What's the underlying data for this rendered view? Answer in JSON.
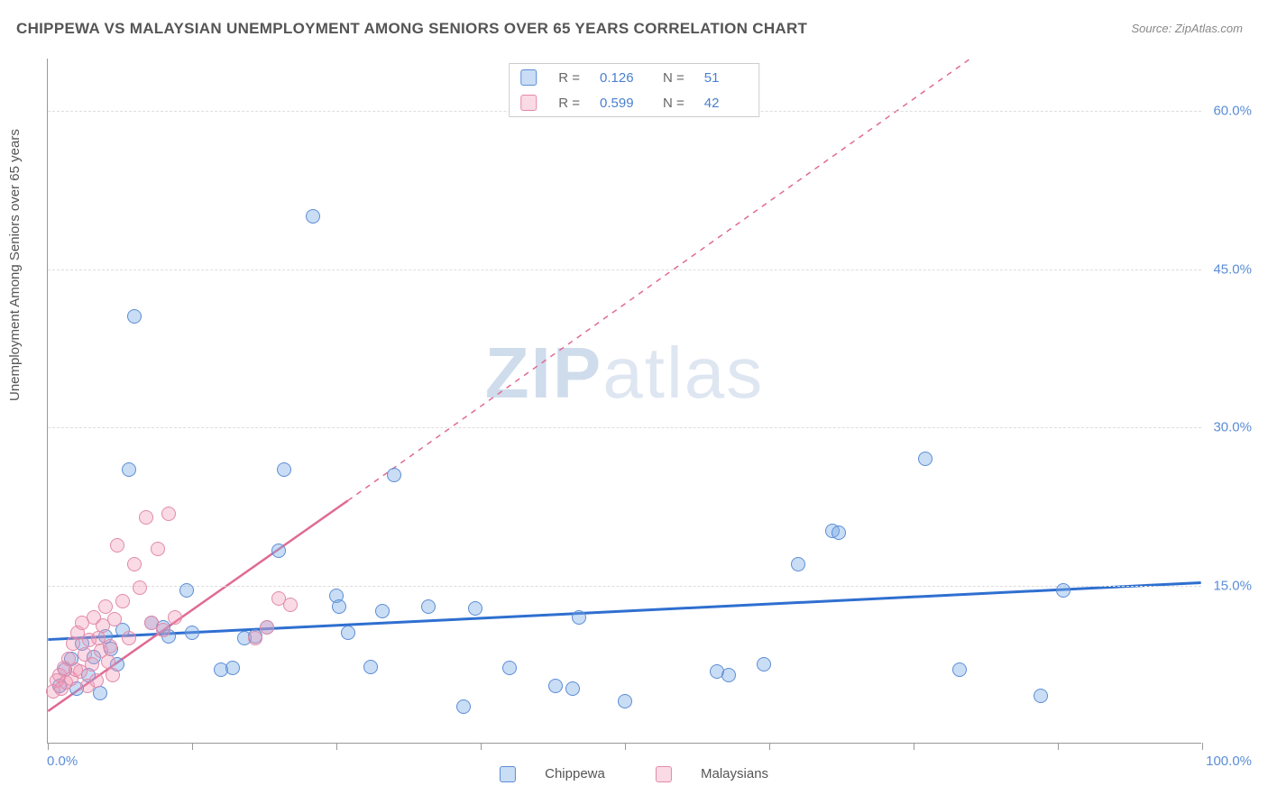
{
  "title": "CHIPPEWA VS MALAYSIAN UNEMPLOYMENT AMONG SENIORS OVER 65 YEARS CORRELATION CHART",
  "source_label": "Source: ",
  "source_value": "ZipAtlas.com",
  "y_axis_label": "Unemployment Among Seniors over 65 years",
  "watermark_a": "ZIP",
  "watermark_b": "atlas",
  "chart": {
    "type": "scatter",
    "xlim": [
      0,
      100
    ],
    "ylim": [
      0,
      65
    ],
    "x_ticks_pct": [
      0,
      12.5,
      25,
      37.5,
      50,
      62.5,
      75,
      87.5,
      100
    ],
    "x_tick_labels": {
      "0": "0.0%",
      "100": "100.0%"
    },
    "y_gridlines": [
      15,
      30,
      45,
      60
    ],
    "y_tick_labels": {
      "15": "15.0%",
      "30": "30.0%",
      "45": "45.0%",
      "60": "60.0%"
    },
    "background_color": "#ffffff",
    "grid_color": "#dddddd",
    "axis_color": "#999999",
    "label_color": "#555555",
    "tick_label_color": "#5b8dd6",
    "marker_radius": 8,
    "series": [
      {
        "name": "Chippewa",
        "color_fill": "rgba(120,170,230,0.4)",
        "color_stroke": "#5b8dd6",
        "trend": {
          "x1": 0,
          "y1": 9.8,
          "x2": 100,
          "y2": 15.2,
          "stroke": "#2f6fd0",
          "width": 3,
          "dash": "none",
          "extend_dash": false
        },
        "points": [
          [
            1,
            5.5
          ],
          [
            1.5,
            7
          ],
          [
            2,
            8
          ],
          [
            2.5,
            5.2
          ],
          [
            3,
            9.5
          ],
          [
            3.5,
            6.5
          ],
          [
            4,
            8.2
          ],
          [
            4.5,
            4.8
          ],
          [
            5,
            10.2
          ],
          [
            5.5,
            9
          ],
          [
            6,
            7.5
          ],
          [
            6.5,
            10.8
          ],
          [
            7,
            26
          ],
          [
            7.5,
            40.5
          ],
          [
            9,
            11.5
          ],
          [
            10,
            11
          ],
          [
            10.5,
            10.2
          ],
          [
            12,
            14.5
          ],
          [
            12.5,
            10.5
          ],
          [
            15,
            7
          ],
          [
            16,
            7.2
          ],
          [
            17,
            10
          ],
          [
            18,
            10.2
          ],
          [
            19,
            11
          ],
          [
            20,
            18.3
          ],
          [
            20.5,
            26
          ],
          [
            23,
            50
          ],
          [
            25,
            14
          ],
          [
            25.2,
            13
          ],
          [
            26,
            10.5
          ],
          [
            28,
            7.3
          ],
          [
            29,
            12.6
          ],
          [
            30,
            25.5
          ],
          [
            33,
            13
          ],
          [
            36,
            3.5
          ],
          [
            37,
            12.8
          ],
          [
            40,
            7.2
          ],
          [
            44,
            5.5
          ],
          [
            45.5,
            5.2
          ],
          [
            46,
            12
          ],
          [
            50,
            4
          ],
          [
            58,
            6.8
          ],
          [
            59,
            6.5
          ],
          [
            62,
            7.5
          ],
          [
            65,
            17
          ],
          [
            68,
            20.2
          ],
          [
            68.5,
            20
          ],
          [
            76,
            27
          ],
          [
            79,
            7
          ],
          [
            86,
            4.5
          ],
          [
            88,
            14.5
          ]
        ]
      },
      {
        "name": "Malaysians",
        "color_fill": "rgba(240,150,180,0.35)",
        "color_stroke": "#e28aa8",
        "trend": {
          "x1": 0,
          "y1": 3,
          "x2": 26,
          "y2": 23,
          "stroke": "#e06a94",
          "width": 2.5,
          "dash": "none",
          "extend_dash": true,
          "dash_to_x": 80,
          "dash_to_y": 65
        },
        "points": [
          [
            0.5,
            5
          ],
          [
            0.8,
            6
          ],
          [
            1,
            6.5
          ],
          [
            1.2,
            5.2
          ],
          [
            1.4,
            7.2
          ],
          [
            1.6,
            5.8
          ],
          [
            1.8,
            8
          ],
          [
            2,
            6.2
          ],
          [
            2.2,
            9.5
          ],
          [
            2.4,
            7
          ],
          [
            2.6,
            10.5
          ],
          [
            2.8,
            6.8
          ],
          [
            3,
            11.5
          ],
          [
            3.2,
            8.5
          ],
          [
            3.4,
            5.5
          ],
          [
            3.6,
            9.8
          ],
          [
            3.8,
            7.5
          ],
          [
            4,
            12
          ],
          [
            4.2,
            6
          ],
          [
            4.4,
            10
          ],
          [
            4.6,
            8.8
          ],
          [
            4.8,
            11.2
          ],
          [
            5,
            13
          ],
          [
            5.2,
            7.8
          ],
          [
            5.4,
            9.2
          ],
          [
            5.6,
            6.5
          ],
          [
            5.8,
            11.8
          ],
          [
            6,
            18.8
          ],
          [
            6.5,
            13.5
          ],
          [
            7,
            10
          ],
          [
            7.5,
            17
          ],
          [
            8,
            14.8
          ],
          [
            8.5,
            21.5
          ],
          [
            9,
            11.5
          ],
          [
            9.5,
            18.5
          ],
          [
            10,
            10.8
          ],
          [
            10.5,
            21.8
          ],
          [
            11,
            12
          ],
          [
            18,
            10
          ],
          [
            19,
            11
          ],
          [
            20,
            13.8
          ],
          [
            21,
            13.2
          ]
        ]
      }
    ]
  },
  "legend_stats": [
    {
      "swatch": "blue",
      "r_label": "R =",
      "r": "0.126",
      "n_label": "N =",
      "n": "51"
    },
    {
      "swatch": "pink",
      "r_label": "R =",
      "r": "0.599",
      "n_label": "N =",
      "n": "42"
    }
  ],
  "legend_bottom": [
    {
      "swatch": "blue",
      "label": "Chippewa"
    },
    {
      "swatch": "pink",
      "label": "Malaysians"
    }
  ]
}
